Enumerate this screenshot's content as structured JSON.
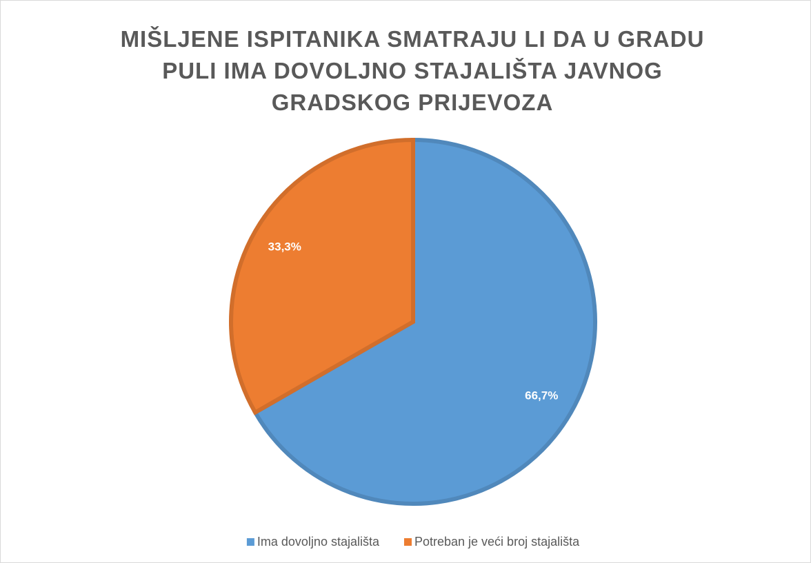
{
  "chart_data": {
    "type": "pie",
    "title": "MIŠLJENE ISPITANIKA SMATRAJU LI DA U GRADU PULI IMA DOVOLJNO STAJALIŠTA JAVNOG GRADSKOG PRIJEVOZA",
    "categories": [
      "Ima dovoljno stajališta",
      "Potreban je veći broj stajališta"
    ],
    "values": [
      66.7,
      33.3
    ],
    "value_labels": [
      "66,7%",
      "33,3%"
    ],
    "colors": [
      "#5b9bd5",
      "#ed7d31"
    ],
    "legend": "bottom"
  }
}
